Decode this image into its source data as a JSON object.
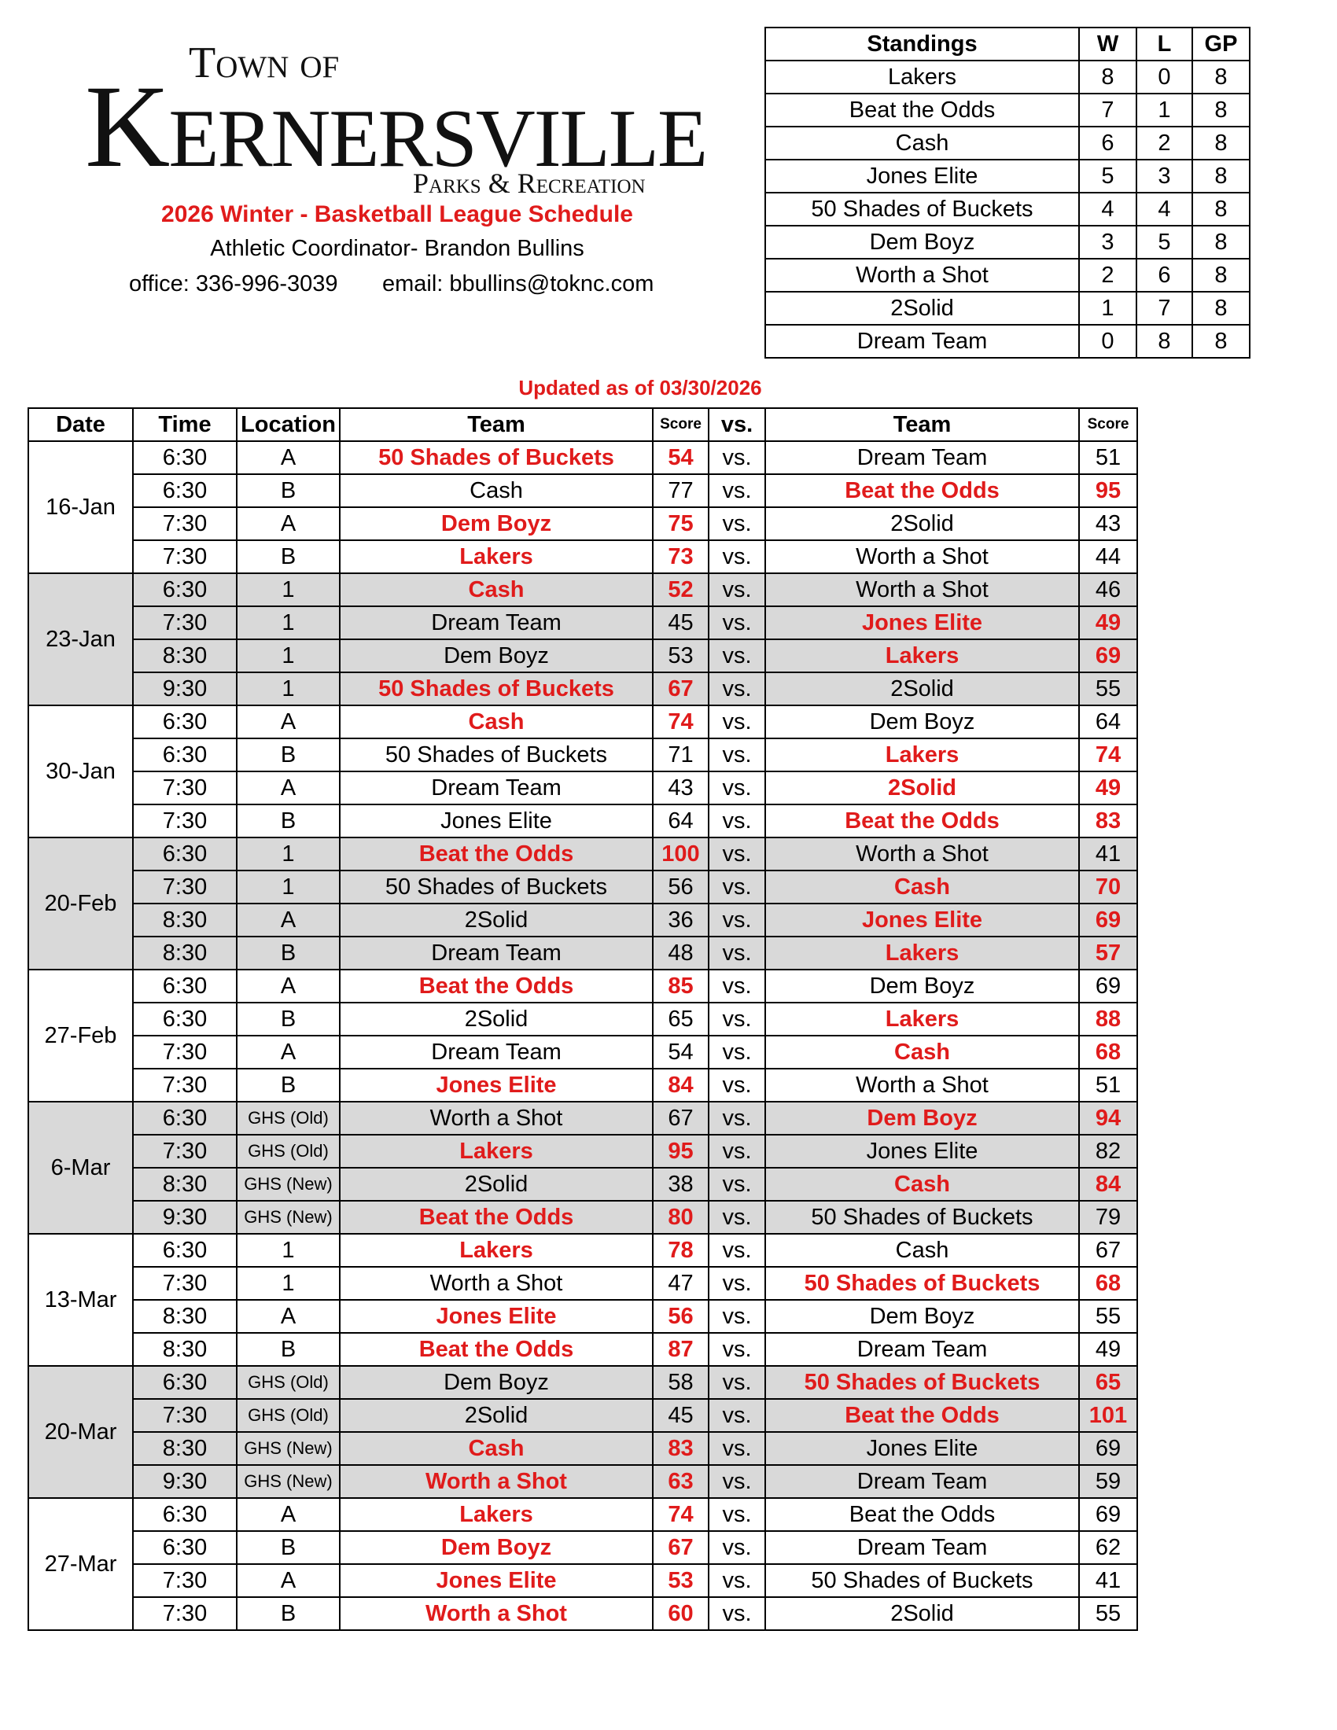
{
  "header": {
    "town_of": "Town of",
    "town_name": "Kernersville",
    "department": "Parks & Recreation",
    "schedule_title": "2026 Winter - Basketball League Schedule",
    "coordinator": "Athletic Coordinator- Brandon Bullins",
    "office": "office: 336-996-3039",
    "email": "email: bbullins@toknc.com"
  },
  "standings": {
    "headers": [
      "Standings",
      "W",
      "L",
      "GP"
    ],
    "rows": [
      [
        "Lakers",
        8,
        0,
        8
      ],
      [
        "Beat the Odds",
        7,
        1,
        8
      ],
      [
        "Cash",
        6,
        2,
        8
      ],
      [
        "Jones Elite",
        5,
        3,
        8
      ],
      [
        "50 Shades of Buckets",
        4,
        4,
        8
      ],
      [
        "Dem Boyz",
        3,
        5,
        8
      ],
      [
        "Worth a Shot",
        2,
        6,
        8
      ],
      [
        "2Solid",
        1,
        7,
        8
      ],
      [
        "Dream Team",
        0,
        8,
        8
      ]
    ]
  },
  "updated": "Updated as of 03/30/2026",
  "schedule": {
    "headers": [
      "Date",
      "Time",
      "Location",
      "Team",
      "Score",
      "vs.",
      "Team",
      "Score"
    ],
    "groups": [
      {
        "date": "16-Jan",
        "games": [
          [
            "6:30",
            "A",
            "50 Shades of Buckets",
            54,
            "Dream Team",
            51
          ],
          [
            "6:30",
            "B",
            "Cash",
            77,
            "Beat the Odds",
            95
          ],
          [
            "7:30",
            "A",
            "Dem Boyz",
            75,
            "2Solid",
            43
          ],
          [
            "7:30",
            "B",
            "Lakers",
            73,
            "Worth a Shot",
            44
          ]
        ]
      },
      {
        "date": "23-Jan",
        "games": [
          [
            "6:30",
            "1",
            "Cash",
            52,
            "Worth a Shot",
            46
          ],
          [
            "7:30",
            "1",
            "Dream Team",
            45,
            "Jones Elite",
            49
          ],
          [
            "8:30",
            "1",
            "Dem Boyz",
            53,
            "Lakers",
            69
          ],
          [
            "9:30",
            "1",
            "50 Shades of Buckets",
            67,
            "2Solid",
            55
          ]
        ]
      },
      {
        "date": "30-Jan",
        "games": [
          [
            "6:30",
            "A",
            "Cash",
            74,
            "Dem Boyz",
            64
          ],
          [
            "6:30",
            "B",
            "50 Shades of Buckets",
            71,
            "Lakers",
            74
          ],
          [
            "7:30",
            "A",
            "Dream Team",
            43,
            "2Solid",
            49
          ],
          [
            "7:30",
            "B",
            "Jones Elite",
            64,
            "Beat the Odds",
            83
          ]
        ]
      },
      {
        "date": "20-Feb",
        "games": [
          [
            "6:30",
            "1",
            "Beat the Odds",
            100,
            "Worth a Shot",
            41
          ],
          [
            "7:30",
            "1",
            "50 Shades of Buckets",
            56,
            "Cash",
            70
          ],
          [
            "8:30",
            "A",
            "2Solid",
            36,
            "Jones Elite",
            69
          ],
          [
            "8:30",
            "B",
            "Dream Team",
            48,
            "Lakers",
            57
          ]
        ]
      },
      {
        "date": "27-Feb",
        "games": [
          [
            "6:30",
            "A",
            "Beat the Odds",
            85,
            "Dem Boyz",
            69
          ],
          [
            "6:30",
            "B",
            "2Solid",
            65,
            "Lakers",
            88
          ],
          [
            "7:30",
            "A",
            "Dream Team",
            54,
            "Cash",
            68
          ],
          [
            "7:30",
            "B",
            "Jones Elite",
            84,
            "Worth a Shot",
            51
          ]
        ]
      },
      {
        "date": "6-Mar",
        "games": [
          [
            "6:30",
            "GHS (Old)",
            "Worth a Shot",
            67,
            "Dem Boyz",
            94
          ],
          [
            "7:30",
            "GHS (Old)",
            "Lakers",
            95,
            "Jones Elite",
            82
          ],
          [
            "8:30",
            "GHS (New)",
            "2Solid",
            38,
            "Cash",
            84
          ],
          [
            "9:30",
            "GHS (New)",
            "Beat the Odds",
            80,
            "50 Shades of Buckets",
            79
          ]
        ]
      },
      {
        "date": "13-Mar",
        "games": [
          [
            "6:30",
            "1",
            "Lakers",
            78,
            "Cash",
            67
          ],
          [
            "7:30",
            "1",
            "Worth a Shot",
            47,
            "50 Shades of Buckets",
            68
          ],
          [
            "8:30",
            "A",
            "Jones Elite",
            56,
            "Dem Boyz",
            55
          ],
          [
            "8:30",
            "B",
            "Beat the Odds",
            87,
            "Dream Team",
            49
          ]
        ]
      },
      {
        "date": "20-Mar",
        "games": [
          [
            "6:30",
            "GHS (Old)",
            "Dem Boyz",
            58,
            "50 Shades of Buckets",
            65
          ],
          [
            "7:30",
            "GHS (Old)",
            "2Solid",
            45,
            "Beat the Odds",
            101
          ],
          [
            "8:30",
            "GHS (New)",
            "Cash",
            83,
            "Jones Elite",
            69
          ],
          [
            "9:30",
            "GHS (New)",
            "Worth a Shot",
            63,
            "Dream Team",
            59
          ]
        ]
      },
      {
        "date": "27-Mar",
        "games": [
          [
            "6:30",
            "A",
            "Lakers",
            74,
            "Beat the Odds",
            69
          ],
          [
            "6:30",
            "B",
            "Dem Boyz",
            67,
            "Dream Team",
            62
          ],
          [
            "7:30",
            "A",
            "Jones Elite",
            53,
            "50 Shades of Buckets",
            41
          ],
          [
            "7:30",
            "B",
            "Worth a Shot",
            60,
            "2Solid",
            55
          ]
        ]
      }
    ]
  }
}
